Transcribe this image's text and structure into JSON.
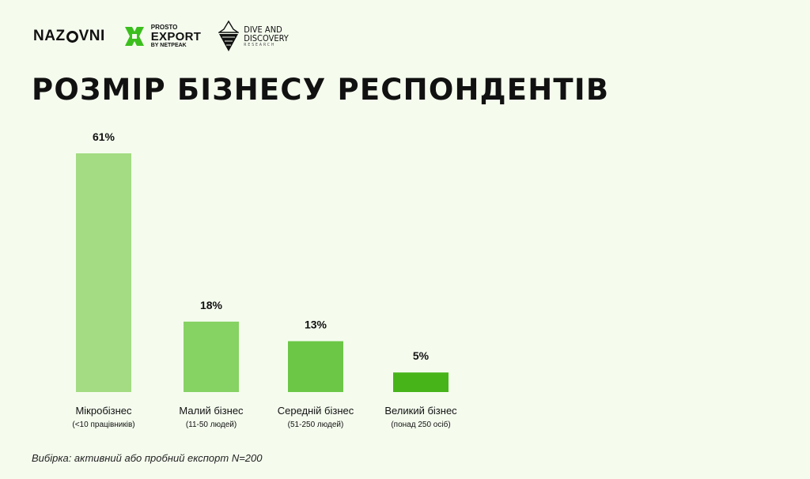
{
  "logos": {
    "nazovni": {
      "before": "NAZ",
      "after": "VNI"
    },
    "prosto": {
      "line1": "PROSTO",
      "line2": "EXPORT",
      "line3": "BY NETPEAK",
      "color": "#3cbf1e"
    },
    "dive": {
      "line1": "DIVE AND",
      "line2": "DISCOVERY",
      "line3": "RESEARCH"
    }
  },
  "title": "РОЗМІР БІЗНЕСУ РЕСПОНДЕНТІВ",
  "note": "Вибірка: активний або пробний експорт N=200",
  "chart_data": {
    "type": "bar",
    "categories": [
      "Мікробізнес",
      "Малий бізнес",
      "Середній бізнес",
      "Великий бізнес"
    ],
    "sublabels": [
      "(<10 працівників)",
      "(11-50 людей)",
      "(51-250 людей)",
      "(понад 250 осіб)"
    ],
    "values": [
      61,
      18,
      13,
      5
    ],
    "data_labels": [
      "61%",
      "18%",
      "13%",
      "5%"
    ],
    "colors": [
      "#a3dc82",
      "#86d263",
      "#6cc747",
      "#47b41a"
    ],
    "ylim": [
      0,
      61
    ],
    "grid": false,
    "legend": "none"
  }
}
